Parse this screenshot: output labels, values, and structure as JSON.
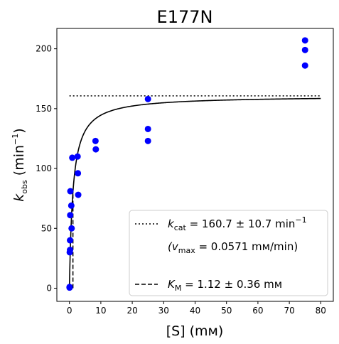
{
  "chart_data": {
    "type": "scatter",
    "title": "E177N",
    "xlabel": "[S] (mм)",
    "ylabel_main": "k",
    "ylabel_sub": "obs",
    "ylabel_unit": "(min",
    "ylabel_exp": "−1",
    "ylabel_close": ")",
    "xlim": [
      -4,
      84
    ],
    "ylim": [
      -11,
      217
    ],
    "x_ticks": [
      0,
      10,
      20,
      30,
      40,
      50,
      60,
      70,
      80
    ],
    "y_ticks": [
      0,
      50,
      100,
      150,
      200
    ],
    "grid": false,
    "legend_position": "lower-right",
    "colors": {
      "points": "#0000ff",
      "fit": "#000000"
    },
    "series": [
      {
        "kind": "scatter",
        "x": [
          0.05,
          0.05,
          0.1,
          0.2,
          0.2,
          0.25,
          0.3,
          0.6,
          0.7,
          0.9,
          2.6,
          2.7,
          2.8,
          8.3,
          8.4,
          25,
          25,
          25,
          75,
          75,
          75
        ],
        "y": [
          0.5,
          1,
          30,
          32,
          40,
          61,
          81,
          69,
          50,
          109,
          110,
          96,
          78,
          123,
          116,
          158,
          133,
          123,
          207,
          199,
          186
        ]
      },
      {
        "kind": "michaelis-menten-fit",
        "kcat": 160.7,
        "km": 1.12,
        "x_range": [
          0,
          80
        ]
      },
      {
        "kind": "kcat-line",
        "y": 160.7,
        "x_range": [
          0,
          80
        ]
      },
      {
        "kind": "km-line",
        "x": 1.12,
        "y_range": [
          0,
          80.35
        ]
      }
    ],
    "legend": {
      "kcat_symbol": "k",
      "kcat_sub": "cat",
      "kcat_text": " = 160.7 ± 10.7 min",
      "kcat_exp": "−1",
      "vmax_open": "(v",
      "vmax_sub": "max",
      "vmax_text": " = 0.0571 mм/min)",
      "km_symbol": "K",
      "km_sub": "M",
      "km_text": " = 1.12 ± 0.36 mм"
    }
  }
}
